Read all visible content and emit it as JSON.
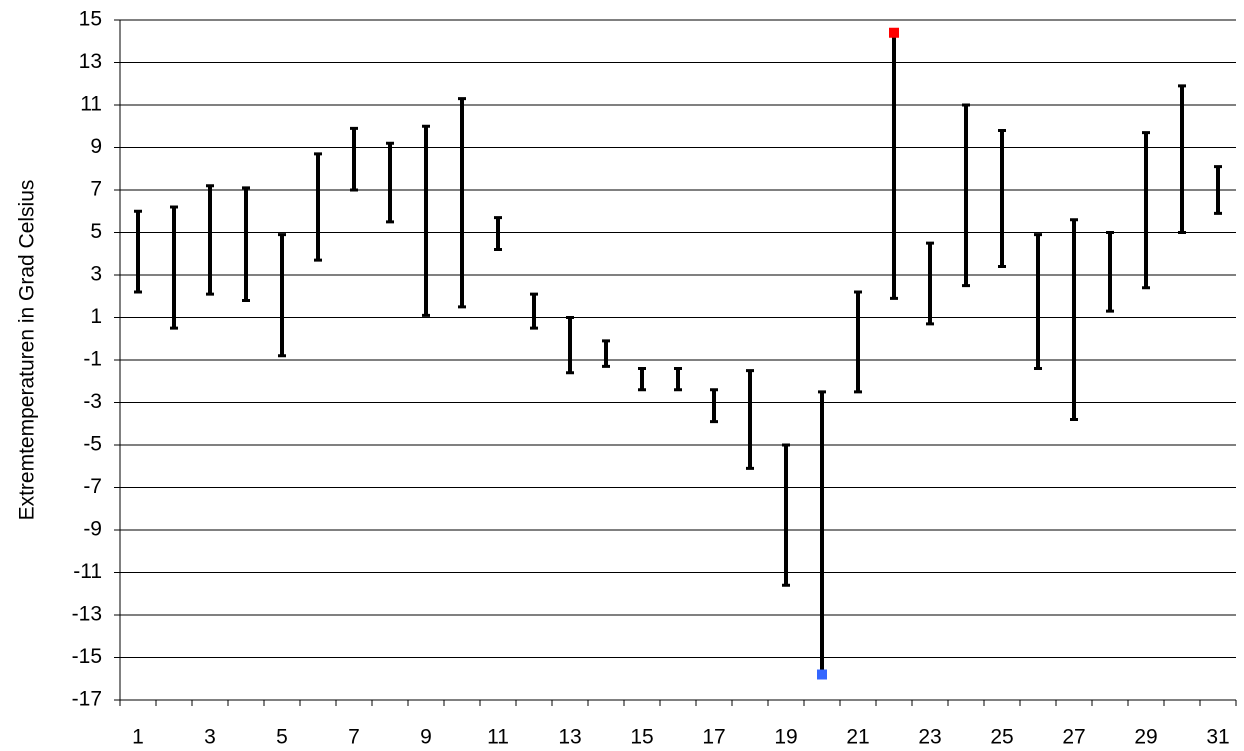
{
  "chart_data": {
    "type": "range",
    "y_label": "Extremtemperaturen in Grad Celsius",
    "categories": [
      1,
      null,
      3,
      null,
      5,
      null,
      7,
      null,
      9,
      null,
      11,
      null,
      13,
      null,
      15,
      null,
      17,
      null,
      19,
      null,
      21,
      null,
      23,
      null,
      25,
      null,
      27,
      null,
      29,
      null,
      31
    ],
    "series": [
      {
        "color": "#000000",
        "values": [
          2.2,
          0.5,
          2.1,
          1.8,
          -0.8,
          3.7,
          7.0,
          5.5,
          1.1,
          1.5,
          4.2,
          0.5,
          -1.6,
          -1.3,
          -2.4,
          -2.4,
          -3.9,
          -6.1,
          -11.6,
          -15.8,
          -2.5,
          1.9,
          0.7,
          2.5,
          3.4,
          -1.4,
          -3.8,
          1.3,
          2.4,
          5.0,
          5.9
        ]
      },
      {
        "color": "#000000",
        "values": [
          6.0,
          6.2,
          7.2,
          7.1,
          4.9,
          8.7,
          9.9,
          9.2,
          10.0,
          11.3,
          5.7,
          2.1,
          1.0,
          -0.1,
          -1.4,
          -1.4,
          -2.4,
          -1.5,
          -5.0,
          -2.5,
          2.2,
          14.4,
          4.5,
          11.0,
          9.8,
          4.9,
          5.6,
          5.0,
          9.7,
          11.9,
          8.1
        ]
      }
    ],
    "max_color": "#ff0000",
    "min_color": "#3366ff",
    "ylim": [
      -17,
      15
    ],
    "yticks": [
      -17,
      -15,
      -13,
      -11,
      -9,
      -7,
      -5,
      -3,
      -1,
      1,
      3,
      5,
      7,
      9,
      11,
      13,
      15
    ],
    "grid": true
  }
}
